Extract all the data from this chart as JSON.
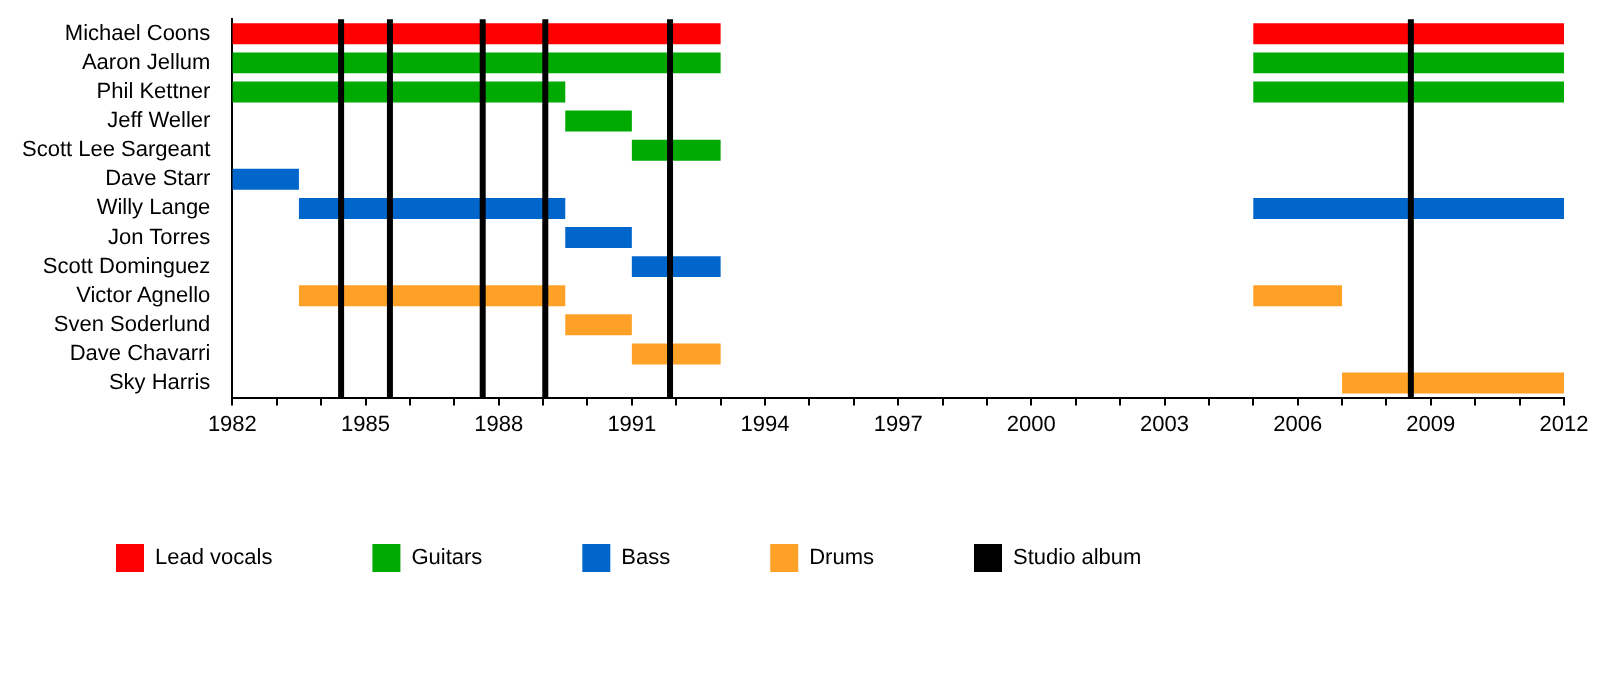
{
  "chart_data": {
    "type": "bar",
    "orientation": "horizontal",
    "categories": [
      "Michael Coons",
      "Aaron Jellum",
      "Phil Kettner",
      "Jeff Weller",
      "Scott Lee Sargeant",
      "Dave Starr",
      "Willy Lange",
      "Jon Torres",
      "Scott Dominguez",
      "Victor Agnello",
      "Sven Soderlund",
      "Dave Chavarri",
      "Sky Harris"
    ],
    "series": [
      {
        "name": "Lead vocals",
        "color": "#ff0000",
        "base": [
          1982,
          null,
          null,
          null,
          null,
          null,
          null,
          null,
          null,
          null,
          null,
          null,
          null
        ],
        "values": [
          11,
          null,
          null,
          null,
          null,
          null,
          null,
          null,
          null,
          null,
          null,
          null,
          null
        ]
      },
      {
        "color": "#ff0000",
        "base": [
          2005,
          null,
          null,
          null,
          null,
          null,
          null,
          null,
          null,
          null,
          null,
          null,
          null
        ],
        "values": [
          7,
          null,
          null,
          null,
          null,
          null,
          null,
          null,
          null,
          null,
          null,
          null,
          null
        ]
      },
      {
        "name": "Guitars",
        "color": "#00aa00",
        "base": [
          null,
          1982,
          1982,
          1989.5,
          1991,
          null,
          null,
          null,
          null,
          null,
          null,
          null,
          null
        ],
        "values": [
          null,
          11,
          7.5,
          1.5,
          2,
          null,
          null,
          null,
          null,
          null,
          null,
          null,
          null
        ]
      },
      {
        "color": "#00aa00",
        "base": [
          null,
          2005,
          2005,
          null,
          null,
          null,
          null,
          null,
          null,
          null,
          null,
          null,
          null
        ],
        "values": [
          null,
          7,
          7,
          null,
          null,
          null,
          null,
          null,
          null,
          null,
          null,
          null,
          null
        ]
      },
      {
        "name": "Bass",
        "color": "#0066cc",
        "base": [
          null,
          null,
          null,
          null,
          null,
          1982,
          1983.5,
          1989.5,
          1991,
          null,
          null,
          null,
          null
        ],
        "values": [
          null,
          null,
          null,
          null,
          null,
          1.5,
          6,
          1.5,
          2,
          null,
          null,
          null,
          null
        ]
      },
      {
        "color": "#0066cc",
        "base": [
          null,
          null,
          null,
          null,
          null,
          null,
          2005,
          null,
          null,
          null,
          null,
          null,
          null
        ],
        "values": [
          null,
          null,
          null,
          null,
          null,
          null,
          7,
          null,
          null,
          null,
          null,
          null,
          null
        ]
      },
      {
        "name": "Drums",
        "color": "#ffa126",
        "base": [
          null,
          null,
          null,
          null,
          null,
          null,
          null,
          null,
          null,
          1983.5,
          1989.5,
          1991,
          2007
        ],
        "values": [
          null,
          null,
          null,
          null,
          null,
          null,
          null,
          null,
          null,
          6,
          1.5,
          2,
          5
        ]
      },
      {
        "color": "#ffa126",
        "base": [
          null,
          null,
          null,
          null,
          null,
          null,
          null,
          null,
          null,
          2005,
          null,
          null,
          null
        ],
        "values": [
          null,
          null,
          null,
          null,
          null,
          null,
          null,
          null,
          null,
          2,
          null,
          null,
          null
        ]
      }
    ],
    "ref_lines": [
      {
        "axis": "x",
        "value": 1984.45,
        "label": "Studio album",
        "color": "#000000"
      },
      {
        "axis": "x",
        "value": 1985.55,
        "color": "#000000"
      },
      {
        "axis": "x",
        "value": 1987.64,
        "color": "#000000"
      },
      {
        "axis": "x",
        "value": 1989.05,
        "color": "#000000"
      },
      {
        "axis": "x",
        "value": 1991.86,
        "color": "#000000"
      },
      {
        "axis": "x",
        "value": 2008.55,
        "color": "#000000"
      }
    ],
    "xlim": [
      1982,
      2012
    ],
    "xticks": [
      1982,
      {
        "value": 1983,
        "label": null
      },
      {
        "value": 1984,
        "label": null
      },
      1985,
      {
        "value": 1986,
        "label": null
      },
      {
        "value": 1987,
        "label": null
      },
      1988,
      {
        "value": 1989,
        "label": null
      },
      {
        "value": 1990,
        "label": null
      },
      1991,
      {
        "value": 1992,
        "label": null
      },
      {
        "value": 1993,
        "label": null
      },
      1994,
      {
        "value": 1995,
        "label": null
      },
      {
        "value": 1996,
        "label": null
      },
      1997,
      {
        "value": 1998,
        "label": null
      },
      {
        "value": 1999,
        "label": null
      },
      2000,
      {
        "value": 2001,
        "label": null
      },
      {
        "value": 2002,
        "label": null
      },
      2003,
      {
        "value": 2004,
        "label": null
      },
      {
        "value": 2005,
        "label": null
      },
      2006,
      {
        "value": 2007,
        "label": null
      },
      {
        "value": 2008,
        "label": null
      },
      2009,
      {
        "value": 2010,
        "label": null
      },
      {
        "value": 2011,
        "label": null
      },
      2012
    ],
    "legend": "bottom left"
  }
}
